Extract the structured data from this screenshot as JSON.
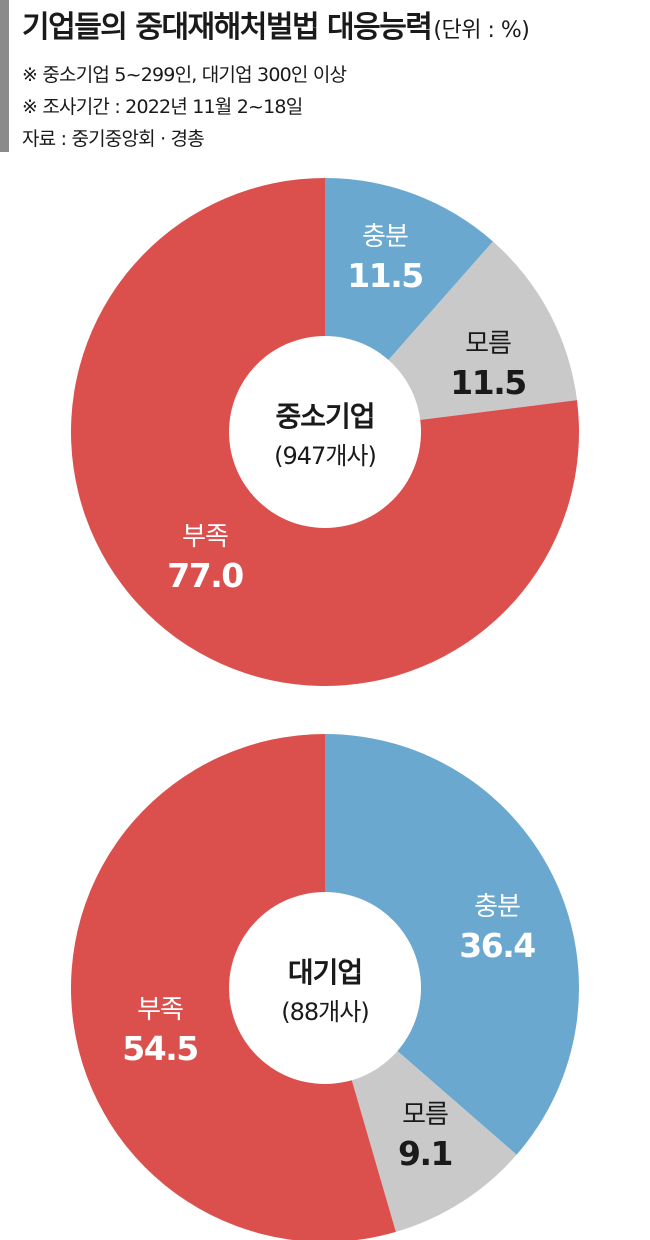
{
  "header": {
    "title": "기업들의 중대재해처벌법 대응능력",
    "unit": "(단위 : %)",
    "notes": [
      "※ 중소기업 5~299인, 대기업 300인 이상",
      "※ 조사기간 : 2022년 11월 2~18일",
      "자료 : 중기중앙회 · 경총"
    ]
  },
  "colors": {
    "sufficient": "#6aa8d0",
    "unknown": "#c9c9c9",
    "insufficient": "#db4f4d",
    "value_text_dark": "#1a1a1a",
    "value_text_light": "#ffffff"
  },
  "chart_data": [
    {
      "type": "pie",
      "center_title": "중소기업",
      "center_sub": "(947개사)",
      "slices": [
        {
          "label": "충분",
          "value": 11.5,
          "display": "11.5"
        },
        {
          "label": "모름",
          "value": 11.5,
          "display": "11.5"
        },
        {
          "label": "부족",
          "value": 77.0,
          "display": "77.0"
        }
      ]
    },
    {
      "type": "pie",
      "center_title": "대기업",
      "center_sub": "(88개사)",
      "slices": [
        {
          "label": "충분",
          "value": 36.4,
          "display": "36.4"
        },
        {
          "label": "모름",
          "value": 9.1,
          "display": "9.1"
        },
        {
          "label": "부족",
          "value": 54.5,
          "display": "54.5"
        }
      ]
    }
  ]
}
